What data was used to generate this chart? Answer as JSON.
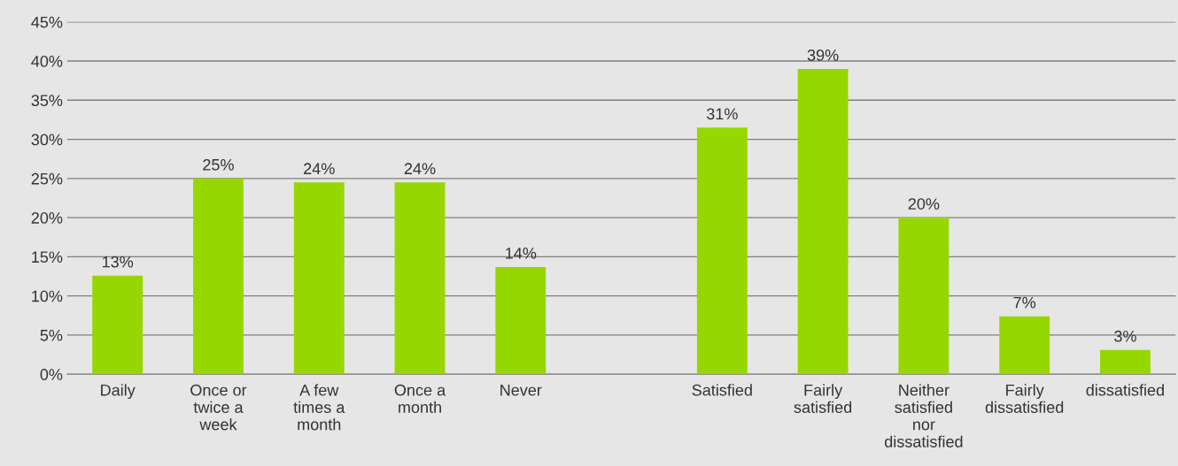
{
  "chart_data": {
    "type": "bar",
    "categories": [
      "Daily",
      "Once or\ntwice a\nweek",
      "A few\ntimes a\nmonth",
      "Once a\nmonth",
      "Never",
      null,
      "Satisfied",
      "Fairly\nsatisfied",
      "Neither\nsatisfied\nnor\ndissatisfied",
      "Fairly\ndissatisfied",
      "dissatisfied"
    ],
    "values": [
      12.6,
      25,
      24.5,
      24.5,
      13.7,
      null,
      31.5,
      39,
      20,
      7.4,
      3.1
    ],
    "value_labels": [
      "13%",
      "25%",
      "24%",
      "24%",
      "14%",
      null,
      "31%",
      "39%",
      "20%",
      "7%",
      "3%"
    ],
    "color": "#97d700",
    "ylim": [
      0,
      45
    ],
    "yticks": [
      {
        "value": 0,
        "label": "0%"
      },
      {
        "value": 5,
        "label": "5%"
      },
      {
        "value": 10,
        "label": "10%"
      },
      {
        "value": 15,
        "label": "15%"
      },
      {
        "value": 20,
        "label": "20%"
      },
      {
        "value": 25,
        "label": "25%"
      },
      {
        "value": 30,
        "label": "30%"
      },
      {
        "value": 35,
        "label": "35%"
      },
      {
        "value": 40,
        "label": "40%"
      },
      {
        "value": 45,
        "label": "45%"
      }
    ],
    "grid": "y",
    "legend": false
  }
}
